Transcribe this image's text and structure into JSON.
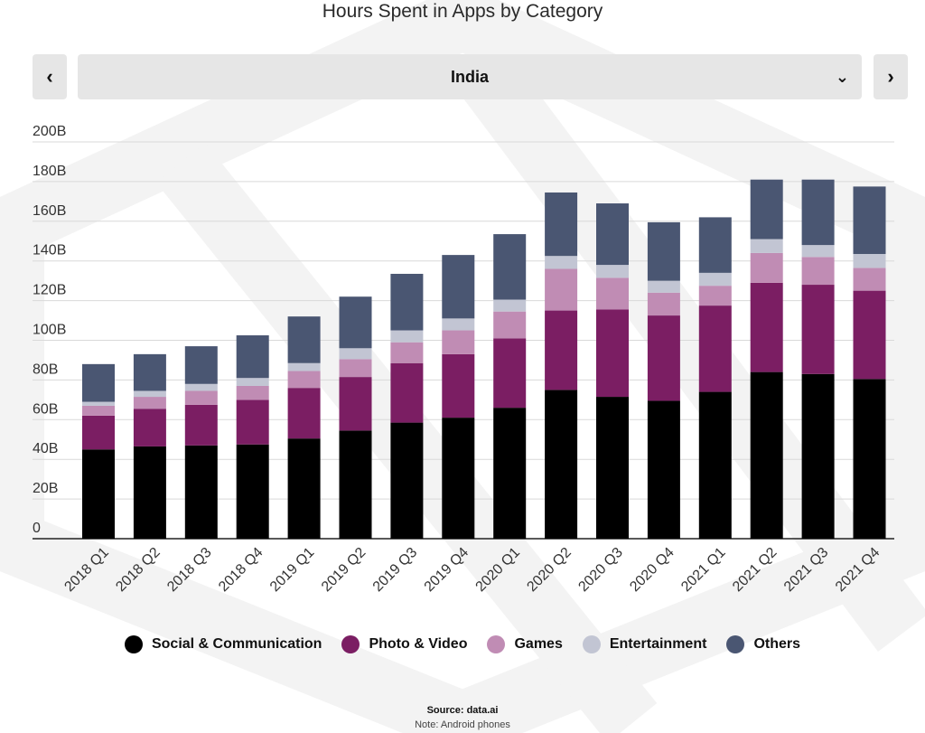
{
  "header": {
    "title": "Hours Spent in Apps by Category",
    "prev_icon": "‹",
    "next_icon": "›",
    "region_selected": "India",
    "dropdown_icon": "⌄"
  },
  "footer": {
    "source": "Source: data.ai",
    "note": "Note: Android phones"
  },
  "chart_data": {
    "type": "bar",
    "stacked": true,
    "title": "Hours Spent in Apps by Category",
    "xlabel": "",
    "ylabel": "",
    "ylim": [
      0,
      200
    ],
    "yticks": [
      0,
      20,
      40,
      60,
      80,
      100,
      120,
      140,
      160,
      180,
      200
    ],
    "ytick_labels": [
      "0",
      "20B",
      "40B",
      "60B",
      "80B",
      "100B",
      "120B",
      "140B",
      "160B",
      "180B",
      "200B"
    ],
    "grid": true,
    "legend_position": "bottom",
    "categories": [
      "2018 Q1",
      "2018 Q2",
      "2018 Q3",
      "2018 Q4",
      "2019 Q1",
      "2019 Q2",
      "2019 Q3",
      "2019 Q4",
      "2020 Q1",
      "2020 Q2",
      "2020 Q3",
      "2020 Q4",
      "2021 Q1",
      "2021 Q2",
      "2021 Q3",
      "2021 Q4"
    ],
    "series": [
      {
        "name": "Social & Communication",
        "color": "#000000",
        "values": [
          45,
          46.5,
          47,
          47.5,
          50.5,
          54.5,
          58.5,
          61,
          66,
          75,
          71.5,
          69.5,
          74,
          84,
          83,
          80.5
        ]
      },
      {
        "name": "Photo & Video",
        "color": "#7b1e63",
        "values": [
          17,
          19,
          20.5,
          22.5,
          25.5,
          27,
          30,
          32,
          35,
          40,
          44,
          43,
          43.5,
          45,
          45,
          44.5
        ]
      },
      {
        "name": "Games",
        "color": "#c08cb4",
        "values": [
          5,
          6,
          7,
          7,
          8.5,
          9,
          10.5,
          12,
          13.5,
          21,
          16,
          11.5,
          10,
          15,
          14,
          11.5
        ]
      },
      {
        "name": "Entertainment",
        "color": "#c2c5d3",
        "values": [
          2,
          3,
          3.5,
          4,
          4,
          5.5,
          6,
          6,
          6,
          6.5,
          6.5,
          6,
          6.5,
          7,
          6,
          7
        ]
      },
      {
        "name": "Others",
        "color": "#4a5672",
        "values": [
          19,
          18.5,
          19,
          21.5,
          23.5,
          26,
          28.5,
          32,
          33,
          32,
          31,
          29.5,
          28,
          30,
          33,
          34
        ]
      }
    ]
  }
}
